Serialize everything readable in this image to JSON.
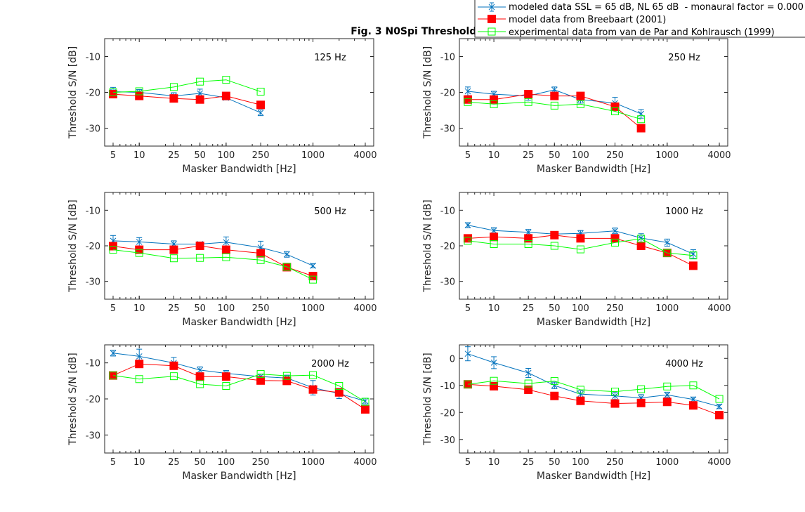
{
  "chart_data": {
    "type": "line",
    "title": "Fig. 3 N0Spi Thresholds",
    "xscale": "log",
    "xlim": [
      4,
      5000
    ],
    "xticks": [
      5,
      10,
      25,
      50,
      100,
      250,
      1000,
      4000
    ],
    "xtick_labels": [
      "5",
      "10",
      "25",
      "50",
      "100",
      "250",
      "1000",
      "4000"
    ],
    "xlabel": "Masker Bandwidth [Hz]",
    "ylabel": "Threshold S/N [dB]",
    "legend": {
      "placement": "top-right (outside)",
      "entries": [
        {
          "name": "modeled data SSL = 65 dB, NL 65 dB  - monaural factor = 0.000",
          "color": "#0072bd",
          "marker": "x with errorbar"
        },
        {
          "name": "model data from Breebaart (2001)",
          "color": "#ff0000",
          "marker": "filled square"
        },
        {
          "name": "experimental data from van de Par and Kohlrausch (1999)",
          "color": "#00ff00",
          "marker": "open square"
        }
      ]
    },
    "panels": [
      {
        "label": "125 Hz",
        "ylim": [
          -35,
          -5
        ],
        "yticks": [
          -10,
          -20,
          -30
        ],
        "x": [
          5,
          10,
          25,
          50,
          100,
          250
        ],
        "series": [
          {
            "name": "modeled",
            "values": [
              -19.8,
              -20,
              -21,
              -20.3,
              -21.5,
              -25.7
            ],
            "err": [
              1.2,
              0.8,
              0.9,
              1.2,
              0.6,
              0.8
            ]
          },
          {
            "name": "Breebaart",
            "values": [
              -20.5,
              -21,
              -21.7,
              -22,
              -21,
              -23.5
            ]
          },
          {
            "name": "experimental",
            "values": [
              -20,
              -19.7,
              -18.5,
              -17,
              -16.5,
              -19.8
            ]
          }
        ]
      },
      {
        "label": "250 Hz",
        "ylim": [
          -35,
          -5
        ],
        "yticks": [
          -10,
          -20,
          -30
        ],
        "x": [
          5,
          10,
          25,
          50,
          100,
          250,
          500
        ],
        "series": [
          {
            "name": "modeled",
            "values": [
              -19.7,
              -20.5,
              -21,
              -19.3,
              -22,
              -23,
              -26
            ],
            "err": [
              1.2,
              0.8,
              1.2,
              0.8,
              1.0,
              1.6,
              1.2
            ]
          },
          {
            "name": "Breebaart",
            "values": [
              -22,
              -22,
              -20.5,
              -21,
              -21,
              -24,
              -30
            ]
          },
          {
            "name": "experimental",
            "values": [
              -22.7,
              -23.3,
              -22.7,
              -23.7,
              -23.3,
              -25.3,
              -27.5
            ]
          }
        ]
      },
      {
        "label": "500 Hz",
        "ylim": [
          -35,
          -5
        ],
        "yticks": [
          -10,
          -20,
          -30
        ],
        "x": [
          5,
          10,
          25,
          50,
          100,
          250,
          500,
          1000
        ],
        "series": [
          {
            "name": "modeled",
            "values": [
              -18.6,
              -18.9,
              -19.5,
              -19.5,
              -19,
              -20.5,
              -22.4,
              -25.6
            ],
            "err": [
              1.5,
              1.2,
              0.9,
              0.5,
              1.5,
              1.8,
              0.8,
              0.6
            ]
          },
          {
            "name": "Breebaart",
            "values": [
              -20.1,
              -21.1,
              -21.1,
              -20,
              -21.1,
              -22.1,
              -26,
              -28.5
            ]
          },
          {
            "name": "experimental",
            "values": [
              -21.1,
              -22,
              -23.5,
              -23.4,
              -23.2,
              -24,
              -25.9,
              -29.5
            ]
          }
        ]
      },
      {
        "label": "1000 Hz",
        "ylim": [
          -35,
          -5
        ],
        "yticks": [
          -10,
          -20,
          -30
        ],
        "x": [
          5,
          10,
          25,
          50,
          100,
          250,
          500,
          1000,
          2000
        ],
        "series": [
          {
            "name": "modeled",
            "values": [
              -14.2,
              -15.7,
              -16.2,
              -16.7,
              -16.5,
              -15.8,
              -17.8,
              -19.1,
              -22.3
            ],
            "err": [
              0.7,
              0.8,
              0.8,
              0.6,
              0.8,
              0.8,
              1.2,
              1.0,
              1.2
            ]
          },
          {
            "name": "Breebaart",
            "values": [
              -17.9,
              -17.5,
              -17.9,
              -17,
              -17.9,
              -17.9,
              -20,
              -22,
              -25.6
            ]
          },
          {
            "name": "experimental",
            "values": [
              -18.6,
              -19.5,
              -19.5,
              -20,
              -21,
              -19.1,
              -18,
              -22,
              -22.7
            ]
          }
        ]
      },
      {
        "label": "2000 Hz",
        "ylim": [
          -35,
          -5
        ],
        "yticks": [
          -10,
          -20,
          -30
        ],
        "x": [
          5,
          10,
          25,
          50,
          100,
          250,
          500,
          1000,
          2000,
          4000
        ],
        "series": [
          {
            "name": "modeled",
            "values": [
              -7.3,
              -8.2,
              -10,
              -12,
              -12.9,
              -13.8,
              -14.2,
              -16.9,
              -18.5,
              -20.6
            ],
            "err": [
              0.8,
              2.0,
              1.5,
              0.9,
              0.8,
              0.7,
              0.8,
              2.0,
              1.4,
              0.8
            ]
          },
          {
            "name": "Breebaart",
            "values": [
              -13.5,
              -10.3,
              -10.8,
              -13.8,
              -13.8,
              -14.9,
              -15,
              -17.4,
              -18.2,
              -22.9
            ]
          },
          {
            "name": "experimental",
            "values": [
              -13.5,
              -14.5,
              -13.7,
              -15.9,
              -16.4,
              -13.1,
              -13.6,
              -13.4,
              -16.4,
              -20.8
            ]
          }
        ]
      },
      {
        "label": "4000 Hz",
        "ylim": [
          -35,
          5
        ],
        "yticks": [
          0,
          -10,
          -20,
          -30
        ],
        "x": [
          5,
          10,
          25,
          50,
          100,
          250,
          500,
          1000,
          2000,
          4000
        ],
        "series": [
          {
            "name": "modeled",
            "values": [
              1.7,
              -1.6,
              -5.4,
              -10,
              -13.2,
              -13.9,
              -14.6,
              -13.5,
              -15.2,
              -17.8
            ],
            "err": [
              2.6,
              2.2,
              1.7,
              1.2,
              1.2,
              1.3,
              1.2,
              1.0,
              0.9,
              0.8
            ]
          },
          {
            "name": "Breebaart",
            "values": [
              -9.6,
              -10.3,
              -11.6,
              -13.9,
              -15.7,
              -16.7,
              -16.5,
              -16.1,
              -17.4,
              -21
            ]
          },
          {
            "name": "experimental",
            "values": [
              -9.6,
              -8.3,
              -9.3,
              -8.4,
              -11.6,
              -12.3,
              -11.4,
              -10.4,
              -10,
              -15
            ]
          }
        ]
      }
    ]
  }
}
